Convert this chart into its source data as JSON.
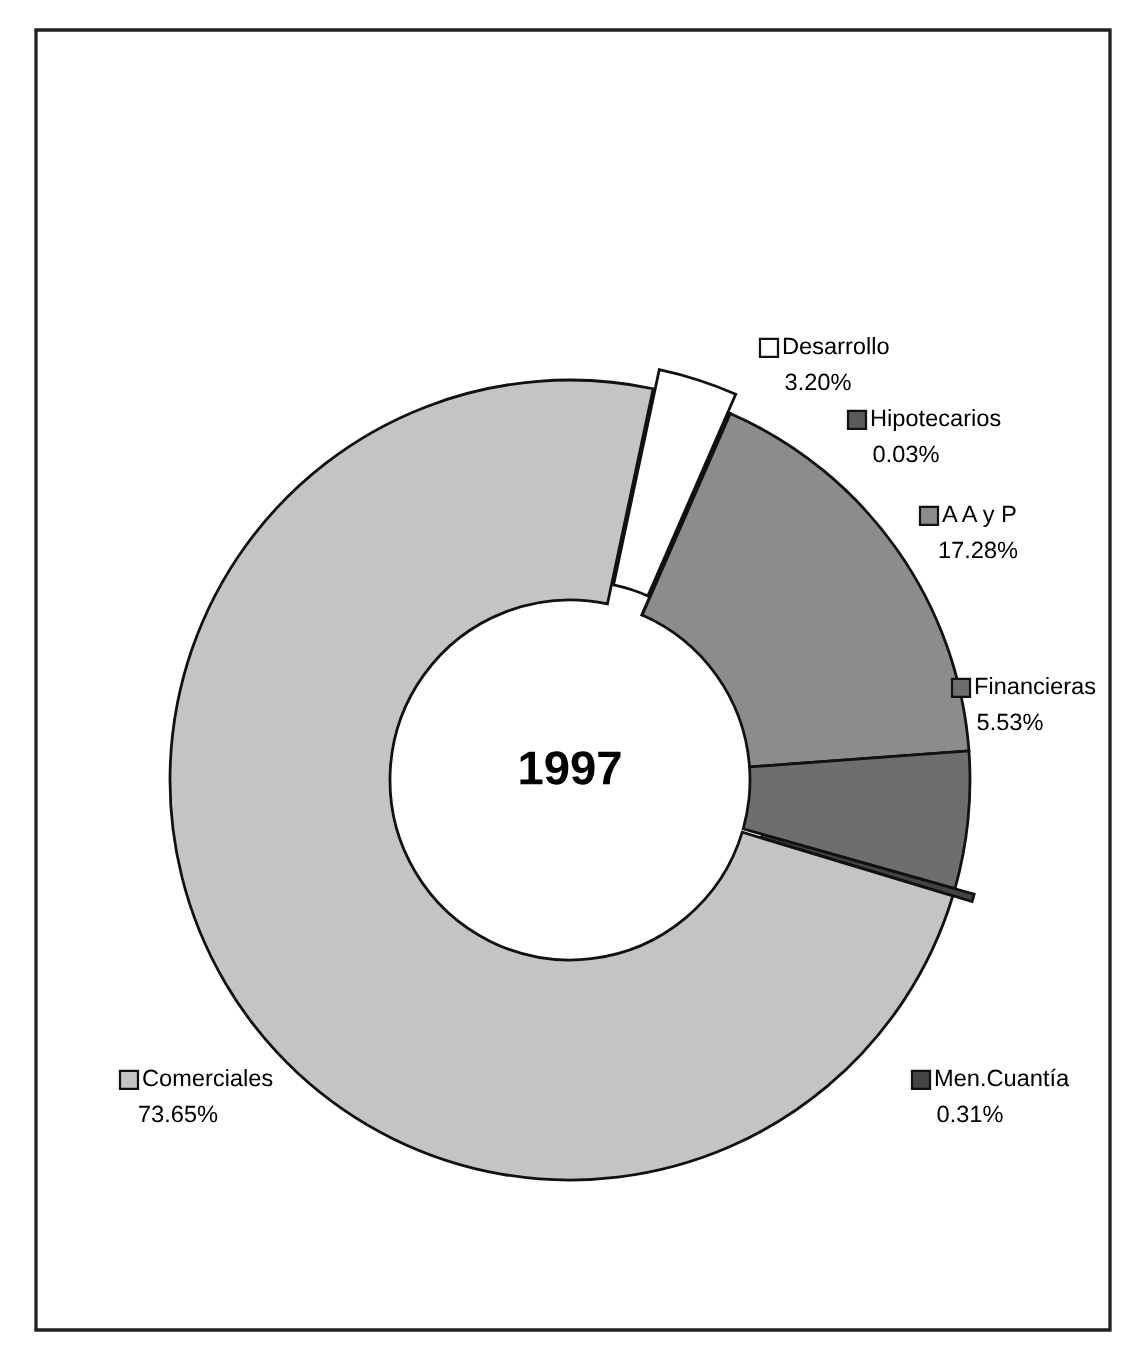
{
  "chart_data": {
    "type": "donut",
    "title": "1997",
    "categories": [
      "Desarrollo",
      "Hipotecarios",
      "A A y P",
      "Financieras",
      "Men.Cuantía",
      "Comerciales"
    ],
    "values": [
      3.2,
      0.03,
      17.28,
      5.53,
      0.31,
      73.65
    ],
    "value_labels": [
      "3.20%",
      "0.03%",
      "17.28%",
      "5.53%",
      "0.31%",
      "73.65%"
    ],
    "colors": [
      "#ffffff",
      "#5a5a5a",
      "#8c8c8c",
      "#6e6e6e",
      "#444444",
      "#c4c4c4"
    ],
    "legend": "right"
  }
}
